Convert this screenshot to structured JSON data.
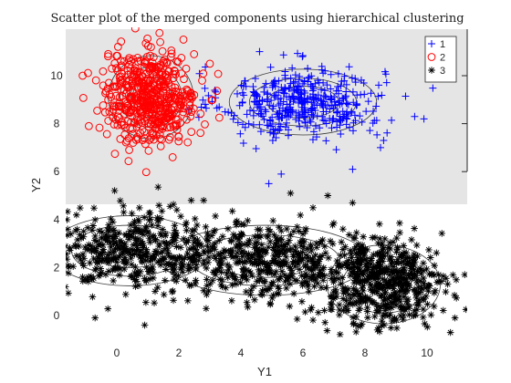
{
  "chart_data": {
    "type": "scatter",
    "title": "Scatter plot of the merged components using hierarchical clustering",
    "xlabel": "Y1",
    "ylabel": "Y2",
    "xlim": [
      -3,
      11
    ],
    "ylim": [
      -1.5,
      11.5
    ],
    "xticks": [
      0,
      2,
      4,
      6,
      8,
      10
    ],
    "yticks_lower": [
      0,
      2,
      4
    ],
    "yticks_upper": [
      6,
      8,
      10
    ],
    "grid": false,
    "legend": {
      "position": "top-right",
      "entries": [
        "1",
        "2",
        "3"
      ]
    },
    "series": [
      {
        "name": "1",
        "marker": "+",
        "color": "#0000ff",
        "clusters": [
          {
            "center": [
              6.0,
              8.9
            ],
            "spread": [
              1.3,
              0.75
            ],
            "count": 420
          }
        ],
        "outliers": [
          [
            9.6,
            8.3
          ],
          [
            9.9,
            8.2
          ],
          [
            8.6,
            7.3
          ],
          [
            4.9,
            5.5
          ],
          [
            5.3,
            5.9
          ],
          [
            7.6,
            6.1
          ],
          [
            8.5,
            7.0
          ],
          [
            3.3,
            8.7
          ]
        ]
      },
      {
        "name": "2",
        "marker": "o",
        "color": "#ff0000",
        "clusters": [
          {
            "center": [
              1.1,
              9.1
            ],
            "spread": [
              0.75,
              0.95
            ],
            "count": 520
          }
        ],
        "outliers": [
          [
            -1.1,
            10.0
          ],
          [
            3.0,
            10.5
          ],
          [
            1.4,
            11.4
          ],
          [
            1.8,
            6.6
          ],
          [
            0.4,
            6.9
          ],
          [
            -0.9,
            7.9
          ]
        ]
      },
      {
        "name": "3",
        "marker": "*",
        "color": "#000000",
        "clusters": [
          {
            "center": [
              0.4,
              2.7
            ],
            "spread": [
              1.4,
              0.8
            ],
            "count": 420
          },
          {
            "center": [
              4.8,
              2.3
            ],
            "spread": [
              1.8,
              0.8
            ],
            "count": 480
          },
          {
            "center": [
              8.6,
              1.3
            ],
            "spread": [
              1.0,
              0.9
            ],
            "count": 520
          }
        ],
        "outliers": [
          [
            2.4,
            4.8
          ],
          [
            2.8,
            4.8
          ],
          [
            5.6,
            5.1
          ],
          [
            6.8,
            5.0
          ],
          [
            7.6,
            4.7
          ],
          [
            10.9,
            -0.1
          ],
          [
            -0.7,
            -0.1
          ],
          [
            0.9,
            -0.4
          ],
          [
            8.4,
            -0.6
          ],
          [
            -2.1,
            3.1
          ]
        ]
      }
    ],
    "contours": {
      "color": "#1a1a1a",
      "levels": [
        0.22,
        0.45,
        0.7
      ]
    }
  },
  "plot_style": {
    "upper_axes_background": "#e5e5e5"
  }
}
